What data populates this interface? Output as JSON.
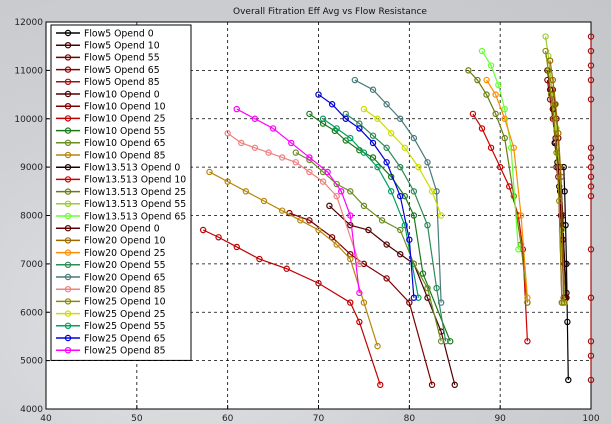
{
  "chart_data": {
    "type": "line",
    "title": "Overall Fitration Eff Avg vs Flow Resistance",
    "xlabel": "",
    "ylabel": "",
    "xlim": [
      40,
      100
    ],
    "ylim": [
      4000,
      12000
    ],
    "xticks": [
      "40",
      "50",
      "60",
      "70",
      "80",
      "90",
      "100"
    ],
    "yticks": [
      "4000",
      "5000",
      "6000",
      "7000",
      "8000",
      "9000",
      "10000",
      "11000",
      "12000"
    ],
    "grid": "dashed",
    "legend_position": "top-left",
    "series": [
      {
        "name": "Flow5 Opend 0",
        "color": "#000000",
        "x": [
          97.0,
          97.1,
          97.2,
          97.3,
          97.4,
          97.5
        ],
        "y": [
          9000,
          8500,
          7800,
          7000,
          5800,
          4600
        ]
      },
      {
        "name": "Flow5 Opend 10",
        "color": "#4a0000",
        "x": [
          96.2,
          96.5,
          96.7,
          96.9,
          97.1,
          97.3
        ],
        "y": [
          9000,
          8600,
          8000,
          7500,
          7000,
          6300
        ]
      },
      {
        "name": "Flow5 Opend 55",
        "color": "#700000",
        "x": [
          95.8,
          96.0,
          96.2,
          96.4,
          96.6,
          96.9,
          97.2
        ],
        "y": [
          10600,
          10300,
          10000,
          9600,
          9000,
          8000,
          6300
        ]
      },
      {
        "name": "Flow5 Opend 65",
        "color": "#8b0000",
        "x": [
          95.2,
          95.5,
          95.8,
          96.1,
          96.4,
          96.8
        ],
        "y": [
          10800,
          10400,
          10000,
          9500,
          8800,
          6200
        ]
      },
      {
        "name": "Flow5 Opend 85",
        "color": "#a01010",
        "x": [
          100,
          100,
          100,
          100,
          100,
          100,
          100,
          100,
          100,
          100,
          100,
          100,
          100,
          100,
          100,
          100
        ],
        "y": [
          11700,
          11400,
          11100,
          10800,
          10400,
          9400,
          9200,
          9000,
          8800,
          8600,
          8400,
          7300,
          6300,
          5400,
          5100,
          4600
        ]
      },
      {
        "name": "Flow10 Opend 0",
        "color": "#500000",
        "x": [
          71.2,
          73.5,
          75.5,
          77.5,
          79.0,
          80.5,
          82.0,
          83.5,
          85.0
        ],
        "y": [
          8200,
          7800,
          7700,
          7400,
          7200,
          7000,
          6300,
          5600,
          4500
        ]
      },
      {
        "name": "Flow10 Opend 10",
        "color": "#800000",
        "x": [
          66.8,
          69.0,
          71.5,
          73.5,
          75.0,
          77.5,
          80.0,
          82.5
        ],
        "y": [
          8050,
          7900,
          7550,
          7200,
          7000,
          6700,
          6200,
          4500
        ]
      },
      {
        "name": "Flow10 Opend 25",
        "color": "#c00000",
        "x": [
          57.3,
          59.0,
          61.0,
          63.5,
          66.5,
          70.0,
          73.5,
          74.5,
          76.8
        ],
        "y": [
          7700,
          7550,
          7350,
          7100,
          6900,
          6600,
          6200,
          5800,
          4500
        ]
      },
      {
        "name": "Flow10 Opend 55",
        "color": "#1a7a1a",
        "x": [
          69.0,
          70.5,
          71.8,
          73.0,
          74.5,
          76.0,
          78.0,
          79.5,
          80.5,
          81.5,
          84.5
        ],
        "y": [
          10100,
          9900,
          9750,
          9550,
          9350,
          9200,
          8800,
          8400,
          8000,
          6800,
          5400
        ]
      },
      {
        "name": "Flow10 Opend 65",
        "color": "#6b8e23",
        "x": [
          67.5,
          69.0,
          70.5,
          72.0,
          73.5,
          75.0,
          77.0,
          79.0,
          80.5,
          82.0,
          83.5
        ],
        "y": [
          9300,
          9150,
          8900,
          8650,
          8500,
          8200,
          7900,
          7700,
          7000,
          6500,
          5400
        ]
      },
      {
        "name": "Flow10 Opend 85",
        "color": "#b8860b",
        "x": [
          58.0,
          60.0,
          62.0,
          64.0,
          66.0,
          68.0,
          70.0,
          72.0,
          73.5,
          75.0,
          76.5
        ],
        "y": [
          8900,
          8700,
          8500,
          8300,
          8100,
          7900,
          7700,
          7400,
          7100,
          6200,
          5300
        ]
      },
      {
        "name": "Flow13.513 Opend 0",
        "color": "#200000",
        "x": [
          96.0,
          96.3,
          96.6,
          96.9,
          97.1,
          97.3
        ],
        "y": [
          9500,
          9100,
          8500,
          7800,
          7000,
          6400
        ]
      },
      {
        "name": "Flow13.513 Opend 10",
        "color": "#cc0000",
        "x": [
          87.0,
          88.0,
          89.0,
          90.0,
          91.0,
          92.0,
          92.5,
          93.0
        ],
        "y": [
          10100,
          9800,
          9400,
          9000,
          8600,
          8000,
          7300,
          5400
        ]
      },
      {
        "name": "Flow13.513 Opend 25",
        "color": "#6b7d10",
        "x": [
          86.5,
          87.5,
          88.5,
          89.5,
          90.5,
          91.5,
          92.3,
          93.0
        ],
        "y": [
          11000,
          10800,
          10500,
          10100,
          9600,
          8400,
          7400,
          6200
        ]
      },
      {
        "name": "Flow13.513 Opend 55",
        "color": "#9acd32",
        "x": [
          95.0,
          95.3,
          95.6,
          95.9,
          96.2,
          96.5,
          96.8,
          97.1
        ],
        "y": [
          11700,
          11300,
          10800,
          10300,
          9800,
          9000,
          7700,
          6200
        ]
      },
      {
        "name": "Flow13.513 Opend 65",
        "color": "#66ff33",
        "x": [
          88.0,
          89.0,
          89.8,
          90.5,
          91.2,
          92.0
        ],
        "y": [
          11400,
          11100,
          10700,
          10200,
          9400,
          7300
        ]
      },
      {
        "name": "Flow20 Opend 0",
        "color": "#600000",
        "x": [
          95.2,
          95.5,
          95.8,
          96.1,
          96.4,
          96.7,
          97.0
        ],
        "y": [
          11000,
          10600,
          10200,
          9600,
          9000,
          8000,
          6300
        ]
      },
      {
        "name": "Flow20 Opend 10",
        "color": "#9a6a00",
        "x": [
          95.5,
          95.8,
          96.1,
          96.4,
          96.7,
          97.0
        ],
        "y": [
          11200,
          10800,
          10300,
          9700,
          8800,
          6200
        ]
      },
      {
        "name": "Flow20 Opend 25",
        "color": "#ff8c00",
        "x": [
          88.5,
          89.5,
          90.5,
          91.5,
          92.3,
          93.0
        ],
        "y": [
          10800,
          10500,
          10000,
          9400,
          8000,
          6300
        ]
      },
      {
        "name": "Flow20 Opend 55",
        "color": "#2e8b57",
        "x": [
          73.0,
          74.5,
          76.0,
          77.5,
          79.0,
          80.5,
          82.0,
          83.0,
          84.0
        ],
        "y": [
          10100,
          9900,
          9650,
          9400,
          9000,
          8500,
          7800,
          6500,
          5400
        ]
      },
      {
        "name": "Flow20 Opend 65",
        "color": "#4a7a7a",
        "x": [
          74.0,
          76.0,
          77.5,
          79.0,
          80.5,
          82.0,
          83.0,
          83.5
        ],
        "y": [
          10800,
          10600,
          10300,
          10000,
          9600,
          9100,
          8500,
          6200
        ]
      },
      {
        "name": "Flow20 Opend 85",
        "color": "#f08080",
        "x": [
          60.0,
          61.5,
          63.0,
          64.5,
          66.0,
          67.5,
          69.0,
          70.5,
          72.0,
          74.5
        ],
        "y": [
          9700,
          9500,
          9400,
          9300,
          9200,
          9100,
          8900,
          8700,
          8400,
          7000
        ]
      },
      {
        "name": "Flow25 Opend 10",
        "color": "#8b8b00",
        "x": [
          95.0,
          95.3,
          95.6,
          95.9,
          96.2,
          96.5,
          96.8
        ],
        "y": [
          11400,
          11000,
          10500,
          10000,
          9300,
          8300,
          6200
        ]
      },
      {
        "name": "Flow25 Opend 25",
        "color": "#ccdd00",
        "x": [
          75.0,
          76.5,
          78.0,
          79.5,
          81.0,
          82.5,
          83.5
        ],
        "y": [
          10200,
          10000,
          9700,
          9400,
          9000,
          8500,
          8000
        ]
      },
      {
        "name": "Flow25 Opend 55",
        "color": "#00a060",
        "x": [
          70.5,
          72.0,
          73.5,
          75.0,
          76.5,
          78.0,
          79.5,
          81.0
        ],
        "y": [
          10000,
          9800,
          9600,
          9300,
          9000,
          8500,
          7800,
          6300
        ]
      },
      {
        "name": "Flow25 Opend 65",
        "color": "#0000dd",
        "x": [
          70.0,
          71.5,
          73.0,
          74.5,
          76.0,
          77.5,
          79.0,
          80.0,
          80.5
        ],
        "y": [
          10500,
          10300,
          10000,
          9800,
          9500,
          9100,
          8400,
          7500,
          6300
        ]
      },
      {
        "name": "Flow25 Opend 85",
        "color": "#ff00ff",
        "x": [
          61.0,
          63.0,
          65.0,
          67.0,
          69.0,
          71.0,
          72.5,
          73.5,
          74.5
        ],
        "y": [
          10200,
          10000,
          9800,
          9500,
          9200,
          8900,
          8500,
          8000,
          6400
        ]
      }
    ]
  }
}
